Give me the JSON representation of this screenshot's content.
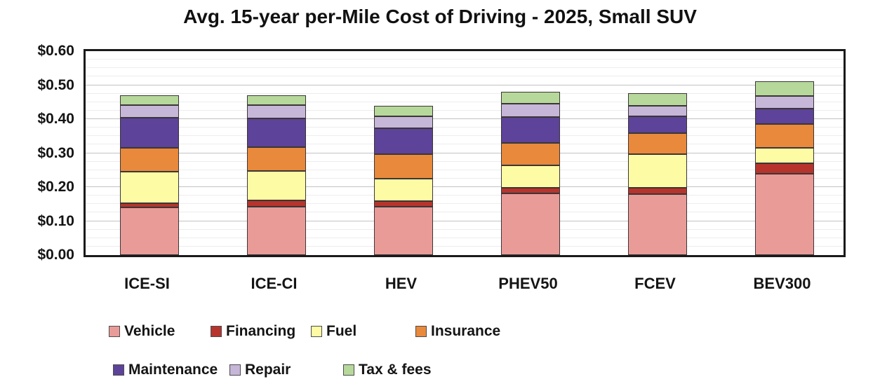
{
  "chart_data": {
    "type": "bar",
    "stacked": true,
    "title": "Avg. 15-year per-Mile Cost of Driving - 2025, Small SUV",
    "categories": [
      "ICE-SI",
      "ICE-CI",
      "HEV",
      "PHEV50",
      "FCEV",
      "BEV300"
    ],
    "series": [
      {
        "name": "Vehicle",
        "color": "#E99B98",
        "values": [
          0.14,
          0.143,
          0.142,
          0.181,
          0.179,
          0.24
        ]
      },
      {
        "name": "Financing",
        "color": "#B7342D",
        "values": [
          0.013,
          0.017,
          0.017,
          0.018,
          0.019,
          0.031
        ]
      },
      {
        "name": "Fuel",
        "color": "#FDFCA5",
        "values": [
          0.092,
          0.088,
          0.066,
          0.066,
          0.098,
          0.045
        ]
      },
      {
        "name": "Insurance",
        "color": "#E8893C",
        "values": [
          0.07,
          0.069,
          0.071,
          0.066,
          0.063,
          0.07
        ]
      },
      {
        "name": "Maintenance",
        "color": "#5D4399",
        "values": [
          0.089,
          0.085,
          0.078,
          0.075,
          0.049,
          0.046
        ]
      },
      {
        "name": "Repair",
        "color": "#C6B6D8",
        "values": [
          0.037,
          0.039,
          0.034,
          0.039,
          0.032,
          0.037
        ]
      },
      {
        "name": "Tax & fees",
        "color": "#B7D89B",
        "values": [
          0.029,
          0.03,
          0.032,
          0.035,
          0.037,
          0.043
        ]
      }
    ],
    "totals": [
      0.47,
      0.471,
      0.44,
      0.48,
      0.477,
      0.512
    ],
    "ylim": [
      0,
      0.6
    ],
    "ytick_step": 0.1,
    "yminor_step": 0.025,
    "ytick_labels": [
      "$0.60",
      "$0.50",
      "$0.40",
      "$0.30",
      "$0.20",
      "$0.10",
      "$0.00"
    ],
    "grid": true,
    "legend_position": "bottom",
    "legend_rows": [
      [
        "Vehicle",
        "Financing",
        "Fuel",
        "Insurance"
      ],
      [
        "Maintenance",
        "Repair",
        "Tax & fees"
      ]
    ]
  }
}
